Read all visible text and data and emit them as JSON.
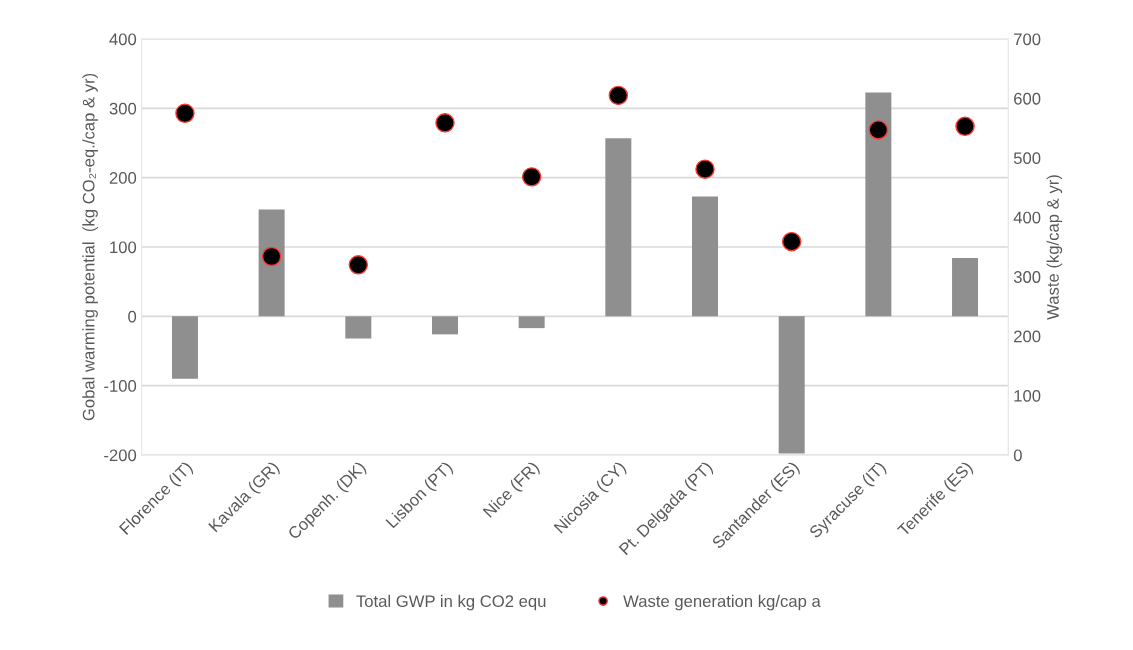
{
  "chart_data": {
    "type": "bar",
    "categories": [
      "Florence (IT)",
      "Kavala (GR)",
      "Copenh. (DK)",
      "Lisbon (PT)",
      "Nice (FR)",
      "Nicosia (CY)",
      "Pt. Delgada (PT)",
      "Santander (ES)",
      "Syracuse (IT)",
      "Tenerife (ES)"
    ],
    "series": [
      {
        "name": "Total GWP in kg CO2 equ",
        "color": "#8f8f8f",
        "values": [
          -90,
          154,
          -32,
          -26,
          -17,
          257,
          173,
          -198,
          323,
          84
        ]
      },
      {
        "name": "Waste generation kg/cap a",
        "type": "scatter",
        "axis": "y2",
        "color": "#000000",
        "marker": "circle",
        "values": [
          575,
          334,
          320,
          559,
          468,
          605,
          481,
          359,
          547,
          553
        ]
      }
    ],
    "ylabel": "Gobal warming potential  (kg CO₂-eq./cap & yr)",
    "y2label": "Waste (kg/cap & yr)",
    "ylim": [
      -200,
      400
    ],
    "yticks": [
      -200,
      -100,
      0,
      100,
      200,
      300,
      400
    ],
    "y2lim": [
      0,
      700
    ],
    "y2ticks": [
      0,
      100,
      200,
      300,
      400,
      500,
      600,
      700
    ],
    "grid": "y",
    "legend": "bottom"
  }
}
